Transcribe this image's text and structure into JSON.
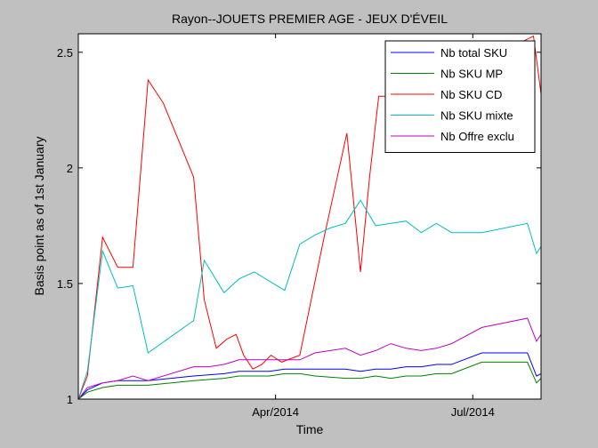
{
  "chart_data": {
    "type": "line",
    "title": "Rayon--JOUETS PREMIER AGE - JEUX D'ÉVEIL",
    "xlabel": "Time",
    "ylabel": "Basis point as of 1st January",
    "x_ticks": [
      {
        "x": 13,
        "label": "Apr/2014"
      },
      {
        "x": 26,
        "label": "Jul/2014"
      }
    ],
    "xlim": [
      0,
      30.5
    ],
    "ylim": [
      1,
      2.58
    ],
    "y_ticks": [
      {
        "y": 1,
        "label": "1"
      },
      {
        "y": 1.5,
        "label": "1.5"
      },
      {
        "y": 2,
        "label": "2"
      },
      {
        "y": 2.5,
        "label": "2.5"
      }
    ],
    "grid": false,
    "legend_position": "top-right",
    "series": [
      {
        "name": "Nb total SKU",
        "color": "#0000ff",
        "x": [
          0,
          0.6,
          1.6,
          2.6,
          4.6,
          7.6,
          9.6,
          10.6,
          11.6,
          12.6,
          13.6,
          14.6,
          15.6,
          17.6,
          18.6,
          19.6,
          20.6,
          21.6,
          22.6,
          23.6,
          24.6,
          26.6,
          27.6,
          28.6,
          29.6,
          30.2,
          30.5
        ],
        "values": [
          1.0,
          1.04,
          1.07,
          1.08,
          1.08,
          1.1,
          1.11,
          1.12,
          1.12,
          1.12,
          1.13,
          1.13,
          1.13,
          1.13,
          1.12,
          1.13,
          1.13,
          1.14,
          1.14,
          1.15,
          1.15,
          1.2,
          1.2,
          1.2,
          1.2,
          1.1,
          1.11
        ]
      },
      {
        "name": "Nb SKU MP",
        "color": "#008000",
        "x": [
          0,
          0.6,
          1.6,
          2.6,
          4.6,
          7.6,
          9.6,
          10.6,
          11.6,
          12.6,
          13.6,
          14.6,
          15.6,
          17.6,
          18.6,
          19.6,
          20.6,
          21.6,
          22.6,
          23.6,
          24.6,
          26.6,
          27.6,
          28.6,
          29.6,
          30.2,
          30.5
        ],
        "values": [
          1.0,
          1.03,
          1.05,
          1.06,
          1.06,
          1.08,
          1.09,
          1.1,
          1.1,
          1.1,
          1.11,
          1.11,
          1.1,
          1.09,
          1.09,
          1.1,
          1.09,
          1.1,
          1.1,
          1.11,
          1.11,
          1.16,
          1.16,
          1.16,
          1.16,
          1.07,
          1.09
        ]
      },
      {
        "name": "Nb SKU CD",
        "color": "#ff0000",
        "x": [
          0,
          0.6,
          1.6,
          2.6,
          3.6,
          4.6,
          5.6,
          7.6,
          8.3,
          9.1,
          9.8,
          10.4,
          10.9,
          11.5,
          12.1,
          12.7,
          13.4,
          14.6,
          16.2,
          17.7,
          18.6,
          19.2,
          19.8,
          20.7,
          21.5,
          22.4,
          23.4,
          24.4,
          25.4,
          26.4,
          27.4,
          28.4,
          29.4,
          30.0,
          30.5
        ],
        "values": [
          1.0,
          1.1,
          1.7,
          1.57,
          1.57,
          2.38,
          2.28,
          1.96,
          1.43,
          1.22,
          1.26,
          1.28,
          1.19,
          1.13,
          1.15,
          1.19,
          1.16,
          1.19,
          1.7,
          2.15,
          1.55,
          1.96,
          2.31,
          2.31,
          2.44,
          2.47,
          2.48,
          2.49,
          2.5,
          2.51,
          2.52,
          2.53,
          2.55,
          2.57,
          2.32
        ]
      },
      {
        "name": "Nb SKU mixte",
        "color": "#00bfbf",
        "x": [
          0,
          0.6,
          1.6,
          2.6,
          3.6,
          4.6,
          6.1,
          7.6,
          8.3,
          9.6,
          10.6,
          11.6,
          12.6,
          13.6,
          14.6,
          15.6,
          16.6,
          17.6,
          18.6,
          19.6,
          20.6,
          21.6,
          22.6,
          23.6,
          24.6,
          26.6,
          29.6,
          30.2,
          30.5
        ],
        "values": [
          1.0,
          1.12,
          1.64,
          1.48,
          1.49,
          1.2,
          1.27,
          1.34,
          1.6,
          1.46,
          1.52,
          1.55,
          1.51,
          1.47,
          1.67,
          1.71,
          1.74,
          1.76,
          1.86,
          1.75,
          1.76,
          1.77,
          1.72,
          1.76,
          1.72,
          1.72,
          1.76,
          1.63,
          1.66
        ]
      },
      {
        "name": "Nb Offre exclu",
        "color": "#bf00bf",
        "x": [
          0,
          0.6,
          1.6,
          2.6,
          3.6,
          4.6,
          7.6,
          8.6,
          9.6,
          10.6,
          11.6,
          12.6,
          13.6,
          14.6,
          15.6,
          16.6,
          17.6,
          18.6,
          19.6,
          20.6,
          21.6,
          22.6,
          23.6,
          24.6,
          26.6,
          29.6,
          30.2,
          30.5
        ],
        "values": [
          1.0,
          1.05,
          1.07,
          1.08,
          1.1,
          1.08,
          1.14,
          1.14,
          1.15,
          1.17,
          1.17,
          1.17,
          1.17,
          1.17,
          1.2,
          1.21,
          1.22,
          1.19,
          1.21,
          1.24,
          1.22,
          1.21,
          1.22,
          1.24,
          1.31,
          1.35,
          1.25,
          1.28
        ]
      }
    ]
  }
}
